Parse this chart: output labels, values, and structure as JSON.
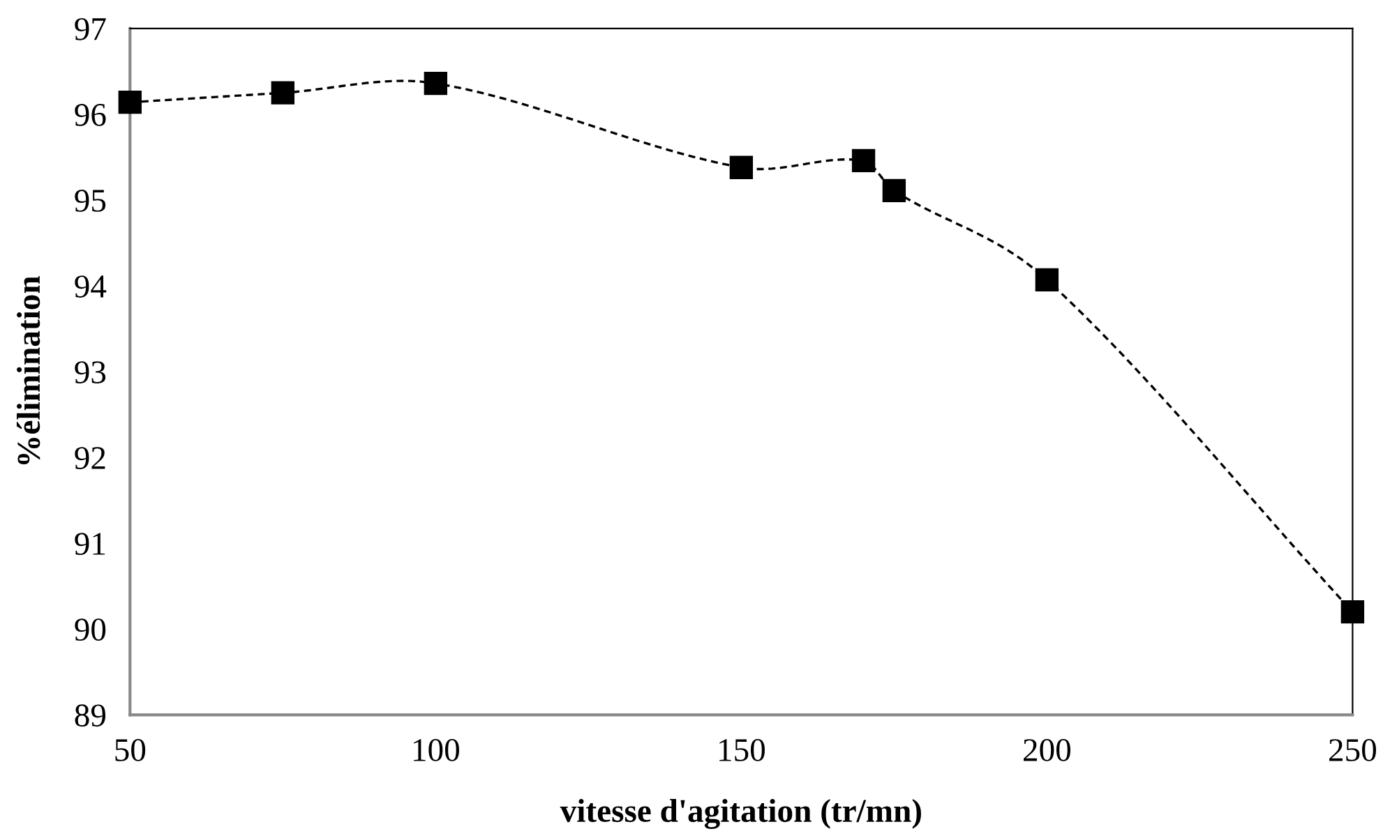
{
  "chart_data": {
    "type": "line",
    "xlabel": "vitesse d'agitation (tr/mn)",
    "ylabel": "%élimination",
    "x": [
      50,
      75,
      100,
      150,
      170,
      175,
      200,
      250
    ],
    "series": [
      {
        "color": "#000000",
        "values": [
          96.14,
          96.25,
          96.36,
          95.38,
          95.46,
          95.11,
          94.07,
          90.2
        ]
      }
    ],
    "marker": "square",
    "line_style": "dashed",
    "xlim": [
      50,
      250
    ],
    "xticks": [
      50,
      100,
      150,
      200,
      250
    ],
    "ylim": [
      89,
      97
    ],
    "yticks": [
      89,
      90,
      91,
      92,
      93,
      94,
      95,
      96,
      97
    ],
    "grid": false,
    "legend": false
  }
}
